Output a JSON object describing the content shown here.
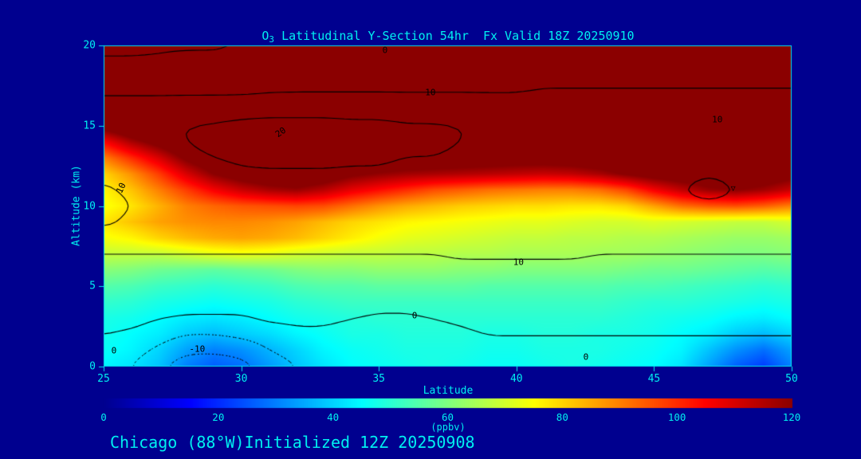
{
  "page": {
    "bg": "#00008f",
    "fg": "#00e8f0"
  },
  "header": {
    "title_o": "O",
    "title_sub": "3",
    "title_rest": " Latitudinal Y-Section 54hr  Fx Valid 18Z 20250910"
  },
  "footer": {
    "caption": "Chicago (88°W)Initialized 12Z 20250908"
  },
  "chart_data": {
    "type": "heatmap",
    "title": "O3 Latitudinal Y-Section 54hr Fx Valid 18Z 20250910",
    "xlabel": "Latitude",
    "ylabel": "Altitude (km)",
    "x_range": [
      25,
      50
    ],
    "y_range": [
      0,
      20
    ],
    "xticks": [
      25,
      30,
      35,
      40,
      45,
      50
    ],
    "yticks": [
      0,
      5,
      10,
      15,
      20
    ],
    "fill_units": "ppbv",
    "fill_values": [
      [
        44,
        42,
        38,
        30,
        26,
        28,
        33,
        38,
        42,
        45,
        46,
        47,
        48,
        47,
        46,
        46,
        47,
        48,
        47,
        46,
        45,
        42,
        34,
        26,
        22,
        30
      ],
      [
        46,
        44,
        40,
        34,
        30,
        32,
        36,
        40,
        44,
        46,
        47,
        48,
        48,
        48,
        47,
        47,
        48,
        48,
        48,
        47,
        46,
        44,
        38,
        32,
        28,
        34
      ],
      [
        47,
        45,
        43,
        39,
        37,
        39,
        41,
        44,
        46,
        48,
        48,
        49,
        49,
        49,
        48,
        48,
        49,
        49,
        48,
        48,
        47,
        45,
        43,
        39,
        37,
        40
      ],
      [
        48,
        47,
        45,
        43,
        42,
        43,
        45,
        47,
        48,
        49,
        50,
        50,
        50,
        50,
        50,
        50,
        50,
        50,
        50,
        49,
        48,
        47,
        46,
        44,
        43,
        45
      ],
      [
        51,
        50,
        48,
        47,
        46,
        47,
        48,
        50,
        51,
        52,
        52,
        52,
        52,
        52,
        52,
        52,
        52,
        52,
        52,
        51,
        50,
        50,
        49,
        48,
        47,
        48
      ],
      [
        55,
        54,
        52,
        51,
        50,
        51,
        52,
        54,
        55,
        55,
        56,
        56,
        56,
        56,
        55,
        55,
        55,
        55,
        55,
        54,
        54,
        53,
        52,
        51,
        50,
        51
      ],
      [
        61,
        60,
        58,
        57,
        56,
        57,
        58,
        60,
        61,
        61,
        62,
        62,
        62,
        61,
        61,
        60,
        60,
        60,
        60,
        59,
        58,
        58,
        57,
        56,
        55,
        56
      ],
      [
        68,
        68,
        68,
        70,
        72,
        73,
        72,
        70,
        69,
        68,
        68,
        67,
        67,
        66,
        66,
        65,
        65,
        65,
        64,
        64,
        63,
        62,
        61,
        60,
        60,
        61
      ],
      [
        74,
        76,
        80,
        83,
        85,
        86,
        85,
        83,
        80,
        77,
        74,
        72,
        71,
        70,
        69,
        68,
        68,
        67,
        67,
        66,
        66,
        65,
        64,
        63,
        63,
        64
      ],
      [
        78,
        82,
        86,
        88,
        89,
        89,
        88,
        86,
        83,
        80,
        78,
        76,
        75,
        74,
        73,
        72,
        72,
        71,
        70,
        70,
        71,
        70,
        69,
        68,
        68,
        70
      ],
      [
        74,
        78,
        84,
        90,
        93,
        95,
        96,
        97,
        96,
        92,
        88,
        85,
        83,
        81,
        80,
        79,
        79,
        78,
        78,
        80,
        86,
        92,
        95,
        96,
        94,
        90
      ],
      [
        76,
        82,
        90,
        98,
        106,
        112,
        116,
        118,
        114,
        108,
        104,
        100,
        96,
        94,
        92,
        91,
        90,
        90,
        92,
        97,
        106,
        113,
        118,
        120,
        117,
        112
      ],
      [
        80,
        88,
        98,
        110,
        120,
        126,
        130,
        132,
        128,
        122,
        119,
        117,
        116,
        115,
        114,
        113,
        112,
        113,
        116,
        121,
        125,
        127,
        129,
        130,
        128,
        124
      ],
      [
        90,
        100,
        110,
        122,
        130,
        135,
        137,
        138,
        136,
        133,
        131,
        130,
        129,
        128,
        127,
        126,
        126,
        127,
        129,
        131,
        133,
        135,
        136,
        136,
        135,
        133
      ],
      [
        105,
        116,
        124,
        132,
        137,
        139,
        140,
        140,
        139,
        138,
        137,
        136,
        136,
        135,
        135,
        134,
        134,
        135,
        136,
        137,
        138,
        139,
        139,
        139,
        138,
        137
      ],
      [
        125,
        132,
        137,
        140,
        140,
        140,
        140,
        140,
        140,
        140,
        140,
        140,
        140,
        140,
        140,
        140,
        140,
        140,
        140,
        140,
        140,
        140,
        140,
        140,
        140,
        140
      ],
      [
        140,
        140,
        140,
        140,
        140,
        140,
        140,
        140,
        140,
        140,
        140,
        140,
        140,
        140,
        140,
        140,
        140,
        140,
        140,
        140,
        140,
        140,
        140,
        140,
        140,
        140
      ],
      [
        140,
        140,
        140,
        140,
        140,
        140,
        140,
        140,
        140,
        140,
        140,
        140,
        140,
        140,
        140,
        140,
        140,
        140,
        140,
        140,
        140,
        140,
        140,
        140,
        140,
        140
      ],
      [
        140,
        140,
        140,
        140,
        140,
        140,
        140,
        140,
        140,
        140,
        140,
        140,
        140,
        140,
        140,
        140,
        140,
        140,
        140,
        140,
        140,
        140,
        140,
        140,
        140,
        140
      ],
      [
        140,
        140,
        140,
        140,
        140,
        140,
        140,
        140,
        140,
        140,
        140,
        140,
        140,
        140,
        140,
        140,
        140,
        140,
        140,
        140,
        140,
        140,
        140,
        140,
        140,
        140
      ],
      [
        140,
        140,
        140,
        140,
        140,
        140,
        140,
        140,
        140,
        140,
        140,
        140,
        140,
        140,
        140,
        140,
        140,
        140,
        140,
        140,
        140,
        140,
        140,
        140,
        140,
        140
      ]
    ],
    "colormap_stops": [
      {
        "v": 0,
        "c": [
          0,
          0,
          143
        ]
      },
      {
        "v": 15,
        "c": [
          0,
          0,
          255
        ]
      },
      {
        "v": 45,
        "c": [
          0,
          255,
          255
        ]
      },
      {
        "v": 75,
        "c": [
          255,
          255,
          0
        ]
      },
      {
        "v": 105,
        "c": [
          255,
          0,
          0
        ]
      },
      {
        "v": 120,
        "c": [
          139,
          0,
          0
        ]
      }
    ],
    "colorbar": {
      "min": 0,
      "max": 120,
      "ticks": [
        0,
        20,
        40,
        60,
        80,
        100,
        120
      ],
      "label": "(ppbv)"
    },
    "contour_levels": [
      -10,
      -5,
      0,
      10,
      20
    ],
    "contour_values": [
      [
        -2,
        -5,
        -9,
        -13,
        -14,
        -12,
        -8,
        -5,
        -3,
        -2,
        -2,
        -2,
        -2,
        -2,
        -2,
        -2,
        -2,
        -2,
        -2,
        -2,
        -2,
        -2,
        -2,
        -2,
        -2,
        -2
      ],
      [
        -1,
        -3,
        -6,
        -9,
        -9,
        -8,
        -5,
        -3,
        -2,
        -1,
        -1,
        -1,
        -1,
        -1,
        -1,
        -1,
        -1,
        -1,
        -1,
        -1,
        -1,
        -1,
        -1,
        -1,
        -1,
        -1
      ],
      [
        0,
        -1,
        -3,
        -5,
        -5,
        -4,
        -3,
        -1,
        -1,
        -2,
        -3,
        -3,
        -2,
        -1,
        0,
        0,
        0,
        0,
        0,
        0,
        0,
        0,
        0,
        0,
        0,
        0
      ],
      [
        2,
        2,
        0,
        -1,
        -1,
        -1,
        1,
        1,
        1,
        0,
        -1,
        -1,
        0,
        1,
        2,
        2,
        2,
        2,
        2,
        2,
        2,
        2,
        2,
        2,
        2,
        2
      ],
      [
        4,
        4,
        4,
        3,
        3,
        3,
        4,
        4,
        4,
        3,
        2,
        2,
        3,
        4,
        4,
        4,
        4,
        4,
        4,
        4,
        4,
        4,
        4,
        4,
        4,
        4
      ],
      [
        6,
        6,
        6,
        6,
        6,
        6,
        6,
        6,
        6,
        6,
        5,
        5,
        6,
        6,
        6,
        6,
        6,
        6,
        6,
        6,
        6,
        6,
        6,
        6,
        6,
        6
      ],
      [
        8,
        8,
        8,
        8,
        8,
        8,
        8,
        8,
        8,
        8,
        8,
        8,
        8,
        8,
        8,
        8,
        8,
        8,
        8,
        8,
        8,
        8,
        8,
        8,
        8,
        8
      ],
      [
        10,
        10,
        10,
        10,
        10,
        10,
        10,
        10,
        10,
        10,
        10,
        10,
        10,
        11,
        11,
        11,
        11,
        11,
        10,
        10,
        10,
        10,
        10,
        10,
        10,
        10
      ],
      [
        12,
        12,
        12,
        12,
        12,
        12,
        12,
        12,
        12,
        12,
        12,
        12,
        12,
        12,
        12,
        12,
        12,
        12,
        12,
        12,
        12,
        12,
        12,
        12,
        12,
        12
      ],
      [
        9,
        11,
        12,
        13,
        13,
        13,
        13,
        13,
        13,
        13,
        13,
        13,
        13,
        13,
        13,
        13,
        13,
        13,
        13,
        13,
        13,
        13,
        13,
        13,
        13,
        13
      ],
      [
        8,
        10,
        12,
        14,
        14,
        14,
        14,
        14,
        14,
        14,
        14,
        14,
        14,
        14,
        14,
        14,
        14,
        14,
        14,
        14,
        13,
        12,
        11,
        12,
        13,
        14
      ],
      [
        9,
        11,
        13,
        15,
        15,
        15,
        15,
        15,
        15,
        15,
        15,
        15,
        15,
        15,
        15,
        15,
        15,
        15,
        15,
        15,
        13,
        10,
        8,
        10,
        13,
        15
      ],
      [
        11,
        13,
        15,
        18,
        18,
        19,
        19,
        19,
        19,
        19,
        19,
        18,
        18,
        18,
        17,
        17,
        17,
        17,
        17,
        17,
        15,
        12,
        10,
        12,
        15,
        17
      ],
      [
        14,
        16,
        17,
        19,
        20,
        21,
        22,
        22,
        22,
        21,
        21,
        20,
        20,
        19,
        18,
        18,
        18,
        18,
        18,
        18,
        17,
        16,
        15,
        16,
        17,
        18
      ],
      [
        19,
        19,
        19,
        20,
        21,
        22,
        23,
        23,
        23,
        22,
        22,
        21,
        21,
        20,
        19,
        19,
        19,
        19,
        19,
        19,
        19,
        19,
        19,
        19,
        19,
        19
      ],
      [
        19,
        19,
        19,
        20,
        21,
        22,
        23,
        23,
        23,
        22,
        22,
        21,
        21,
        20,
        19,
        19,
        19,
        19,
        19,
        19,
        19,
        19,
        19,
        19,
        19,
        19
      ],
      [
        15,
        15,
        15,
        16,
        16,
        17,
        17,
        17,
        17,
        17,
        17,
        16,
        16,
        16,
        15,
        15,
        15,
        15,
        15,
        15,
        15,
        15,
        15,
        15,
        15,
        15
      ],
      [
        9,
        9,
        9,
        9,
        9,
        9,
        10,
        10,
        10,
        10,
        10,
        10,
        10,
        10,
        10,
        10,
        11,
        11,
        11,
        11,
        11,
        11,
        11,
        11,
        11,
        11
      ],
      [
        6,
        6,
        6,
        6,
        6,
        6,
        6,
        7,
        7,
        7,
        7,
        7,
        7,
        7,
        7,
        7,
        8,
        8,
        8,
        8,
        8,
        8,
        8,
        8,
        8,
        8
      ],
      [
        1,
        1,
        1,
        2,
        2,
        2,
        2,
        3,
        3,
        3,
        3,
        3,
        3,
        4,
        4,
        4,
        4,
        4,
        5,
        5,
        5,
        5,
        5,
        5,
        5,
        5
      ],
      [
        -2,
        -2,
        -1,
        -1,
        -1,
        0,
        0,
        0,
        1,
        1,
        1,
        1,
        1,
        2,
        2,
        2,
        2,
        2,
        3,
        3,
        3,
        3,
        3,
        3,
        3,
        3
      ]
    ],
    "contour_labels": [
      {
        "text": "0",
        "fx": 0.409,
        "fy": 0.015,
        "rot": 0
      },
      {
        "text": "10",
        "fx": 0.475,
        "fy": 0.146,
        "rot": 0
      },
      {
        "text": "20",
        "fx": 0.257,
        "fy": 0.27,
        "rot": -35
      },
      {
        "text": "10",
        "fx": 0.892,
        "fy": 0.231,
        "rot": 0
      },
      {
        "text": "10",
        "fx": 0.026,
        "fy": 0.444,
        "rot": -65
      },
      {
        "text": "10",
        "fx": 0.603,
        "fy": 0.675,
        "rot": 0
      },
      {
        "text": "0",
        "fx": 0.452,
        "fy": 0.841,
        "rot": 0
      },
      {
        "text": "0",
        "fx": 0.015,
        "fy": 0.95,
        "rot": 0
      },
      {
        "text": "0",
        "fx": 0.701,
        "fy": 0.97,
        "rot": 0
      },
      {
        "text": "-10",
        "fx": 0.136,
        "fy": 0.945,
        "rot": 0
      }
    ],
    "min_marker": {
      "symbol": "▽",
      "fx": 0.915,
      "fy": 0.447
    }
  }
}
